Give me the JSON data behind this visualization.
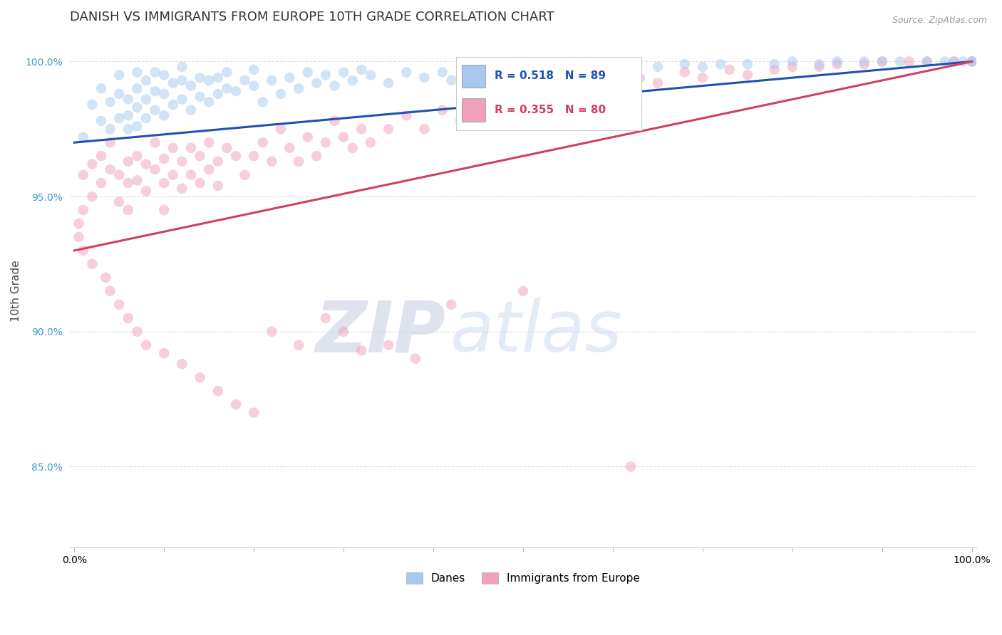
{
  "title": "DANISH VS IMMIGRANTS FROM EUROPE 10TH GRADE CORRELATION CHART",
  "source": "Source: ZipAtlas.com",
  "ylabel": "10th Grade",
  "watermark_zip": "ZIP",
  "watermark_atlas": "atlas",
  "legend_blue_label": "Danes",
  "legend_pink_label": "Immigrants from Europe",
  "R_blue": 0.518,
  "N_blue": 89,
  "R_pink": 0.355,
  "N_pink": 80,
  "blue_color": "#A8C8EE",
  "pink_color": "#F0A0B8",
  "blue_line_color": "#2050B0",
  "pink_line_color": "#D04060",
  "blue_scatter": {
    "x": [
      0.01,
      0.02,
      0.03,
      0.03,
      0.04,
      0.04,
      0.05,
      0.05,
      0.05,
      0.06,
      0.06,
      0.06,
      0.07,
      0.07,
      0.07,
      0.07,
      0.08,
      0.08,
      0.08,
      0.09,
      0.09,
      0.09,
      0.1,
      0.1,
      0.1,
      0.11,
      0.11,
      0.12,
      0.12,
      0.12,
      0.13,
      0.13,
      0.14,
      0.14,
      0.15,
      0.15,
      0.16,
      0.16,
      0.17,
      0.17,
      0.18,
      0.19,
      0.2,
      0.2,
      0.21,
      0.22,
      0.23,
      0.24,
      0.25,
      0.26,
      0.27,
      0.28,
      0.29,
      0.3,
      0.31,
      0.32,
      0.33,
      0.35,
      0.37,
      0.39,
      0.41,
      0.42,
      0.44,
      0.46,
      0.47,
      0.5,
      0.53,
      0.55,
      0.58,
      0.6,
      0.62,
      0.65,
      0.68,
      0.7,
      0.72,
      0.75,
      0.78,
      0.8,
      0.83,
      0.85,
      0.88,
      0.9,
      0.92,
      0.95,
      0.97,
      0.98,
      0.99,
      1.0,
      1.0
    ],
    "y": [
      0.972,
      0.984,
      0.978,
      0.99,
      0.975,
      0.985,
      0.979,
      0.988,
      0.995,
      0.975,
      0.98,
      0.986,
      0.976,
      0.983,
      0.99,
      0.996,
      0.979,
      0.986,
      0.993,
      0.982,
      0.989,
      0.996,
      0.98,
      0.988,
      0.995,
      0.984,
      0.992,
      0.986,
      0.993,
      0.998,
      0.982,
      0.991,
      0.987,
      0.994,
      0.985,
      0.993,
      0.988,
      0.994,
      0.99,
      0.996,
      0.989,
      0.993,
      0.991,
      0.997,
      0.985,
      0.993,
      0.988,
      0.994,
      0.99,
      0.996,
      0.992,
      0.995,
      0.991,
      0.996,
      0.993,
      0.997,
      0.995,
      0.992,
      0.996,
      0.994,
      0.996,
      0.993,
      0.997,
      0.995,
      0.998,
      0.996,
      0.998,
      0.997,
      0.998,
      0.997,
      0.999,
      0.998,
      0.999,
      0.998,
      0.999,
      0.999,
      0.999,
      1.0,
      0.999,
      1.0,
      1.0,
      1.0,
      1.0,
      1.0,
      1.0,
      1.0,
      1.0,
      1.0,
      1.0
    ]
  },
  "pink_scatter": {
    "x": [
      0.005,
      0.01,
      0.01,
      0.02,
      0.02,
      0.03,
      0.03,
      0.04,
      0.04,
      0.05,
      0.05,
      0.06,
      0.06,
      0.06,
      0.07,
      0.07,
      0.08,
      0.08,
      0.09,
      0.09,
      0.1,
      0.1,
      0.1,
      0.11,
      0.11,
      0.12,
      0.12,
      0.13,
      0.13,
      0.14,
      0.14,
      0.15,
      0.15,
      0.16,
      0.16,
      0.17,
      0.18,
      0.19,
      0.2,
      0.21,
      0.22,
      0.23,
      0.24,
      0.25,
      0.26,
      0.27,
      0.28,
      0.29,
      0.3,
      0.31,
      0.32,
      0.33,
      0.35,
      0.37,
      0.39,
      0.41,
      0.43,
      0.45,
      0.47,
      0.5,
      0.52,
      0.55,
      0.58,
      0.6,
      0.63,
      0.65,
      0.68,
      0.7,
      0.73,
      0.75,
      0.78,
      0.8,
      0.83,
      0.85,
      0.88,
      0.9,
      0.93,
      0.95,
      0.98,
      1.0
    ],
    "y": [
      0.94,
      0.958,
      0.945,
      0.962,
      0.95,
      0.965,
      0.955,
      0.96,
      0.97,
      0.958,
      0.948,
      0.963,
      0.955,
      0.945,
      0.965,
      0.956,
      0.962,
      0.952,
      0.96,
      0.97,
      0.964,
      0.955,
      0.945,
      0.968,
      0.958,
      0.963,
      0.953,
      0.968,
      0.958,
      0.965,
      0.955,
      0.96,
      0.97,
      0.963,
      0.954,
      0.968,
      0.965,
      0.958,
      0.965,
      0.97,
      0.963,
      0.975,
      0.968,
      0.963,
      0.972,
      0.965,
      0.97,
      0.978,
      0.972,
      0.968,
      0.975,
      0.97,
      0.975,
      0.98,
      0.975,
      0.982,
      0.978,
      0.985,
      0.98,
      0.988,
      0.985,
      0.99,
      0.992,
      0.988,
      0.994,
      0.992,
      0.996,
      0.994,
      0.997,
      0.995,
      0.997,
      0.998,
      0.998,
      0.999,
      0.999,
      1.0,
      1.0,
      1.0,
      1.0,
      1.0
    ]
  },
  "pink_outliers": {
    "x": [
      0.005,
      0.01,
      0.02,
      0.035,
      0.04,
      0.05,
      0.06,
      0.07,
      0.08,
      0.1,
      0.12,
      0.14,
      0.16,
      0.18,
      0.2,
      0.22,
      0.25,
      0.28,
      0.3,
      0.32,
      0.35,
      0.38,
      0.42,
      0.5,
      0.62
    ],
    "y": [
      0.935,
      0.93,
      0.925,
      0.92,
      0.915,
      0.91,
      0.905,
      0.9,
      0.895,
      0.892,
      0.888,
      0.883,
      0.878,
      0.873,
      0.87,
      0.9,
      0.895,
      0.905,
      0.9,
      0.893,
      0.895,
      0.89,
      0.91,
      0.915,
      0.85
    ]
  },
  "ylim": [
    0.82,
    1.01
  ],
  "xlim": [
    -0.005,
    1.005
  ],
  "yticks": [
    0.85,
    0.9,
    0.95,
    1.0
  ],
  "ytick_labels": [
    "85.0%",
    "90.0%",
    "95.0%",
    "100.0%"
  ],
  "background_color": "#FFFFFF",
  "grid_color": "#DDDDDD",
  "title_fontsize": 13,
  "axis_label_fontsize": 11,
  "tick_fontsize": 10,
  "scatter_size": 110,
  "scatter_alpha": 0.5,
  "line_width": 2.2,
  "blue_line_y0": 0.97,
  "blue_line_y1": 1.0,
  "pink_line_y0": 0.93,
  "pink_line_y1": 1.0
}
